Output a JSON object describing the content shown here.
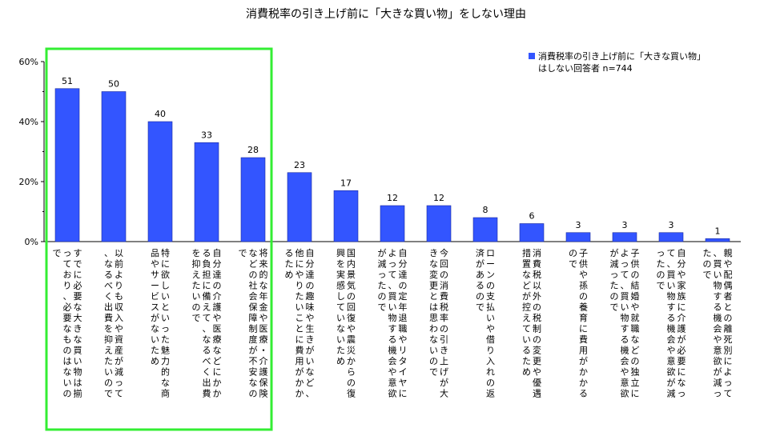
{
  "chart_data": {
    "type": "bar",
    "title": "消費税率の引き上げ前に「大きな買い物」をしない理由",
    "xlabel": "",
    "ylabel": "",
    "ylim": [
      0,
      60
    ],
    "yticks": [
      "0%",
      "20%",
      "40%",
      "60%"
    ],
    "grid": false,
    "legend_position": "top-right",
    "highlight_first_n": 5,
    "colors": {
      "bar": "#3355ff",
      "highlight_box": "#33ee33"
    },
    "series": [
      {
        "name": "消費税率の引き上げ前に「大きな買い物」はしない回答者 n=744",
        "values": [
          51,
          50,
          40,
          33,
          28,
          23,
          17,
          12,
          12,
          8,
          6,
          3,
          3,
          3,
          1
        ]
      }
    ],
    "categories": [
      "すでに必要な大きな買い物は揃っており、必要なものはないので",
      "以前よりも収入や資産が減って、なるべく出費を抑えたいので",
      "特に欲しいといった魅力的な商品やサービスがないため",
      "自分達の介護や医療などにかかる負担に備えて、なるべく出費を抑えたいので",
      "将来的な年金や医療・介護保険などの社会保障制度が不安なので",
      "自分達の趣味や生きがいなど、他にやりたいことに費用がかかるため",
      "国内景気の回復や震災からの復興を実感していないため",
      "自分達の定年退職やリタイヤによって、買い物する機会や意欲が減ったので",
      "今回の消費税率の引き上げが大きな変更とは思わないので",
      "ローンの支払いや借り入れの返済があるので",
      "消費税以外の税制の変更や優遇措置などが控えているため",
      "子供や孫の養育に費用がかかるので",
      "子供の結婚や就職などの独立によって、買い物する機会や意欲が減ったので",
      "自分や家族に介護が必要になって、買い物する機会や意欲が減ったので",
      "親や配偶者との離死別によって、買い物する機会や意欲が減ったので"
    ]
  }
}
